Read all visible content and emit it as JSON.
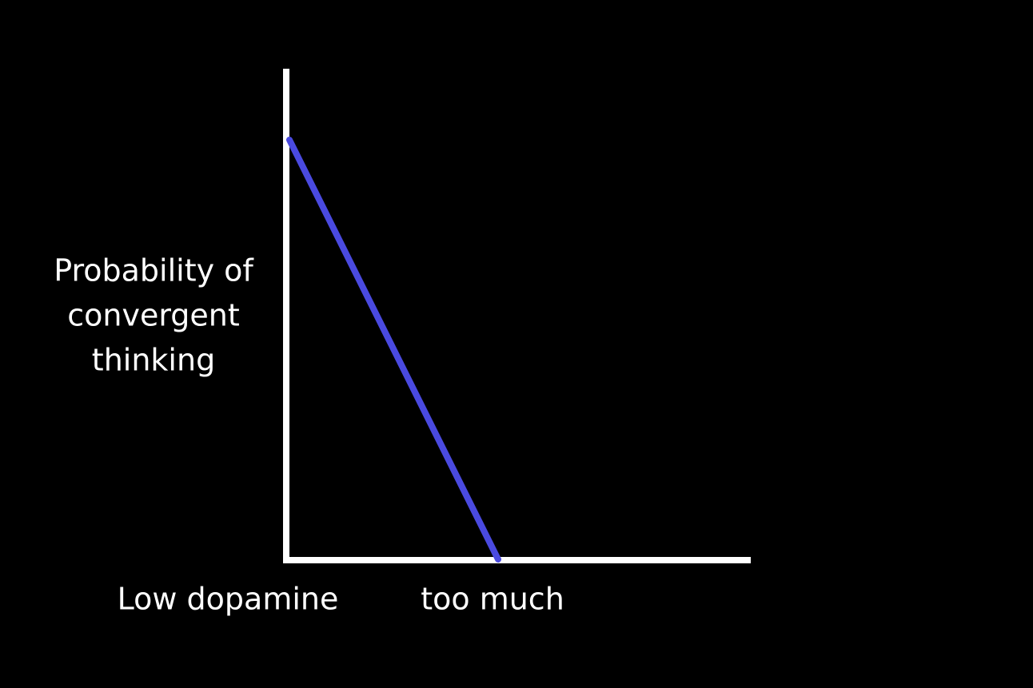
{
  "y_axis_label": {
    "lines": [
      "Probability of",
      "convergent",
      "thinking"
    ]
  },
  "x_axis_labels": {
    "left": "Low dopamine",
    "right": "too much"
  }
}
